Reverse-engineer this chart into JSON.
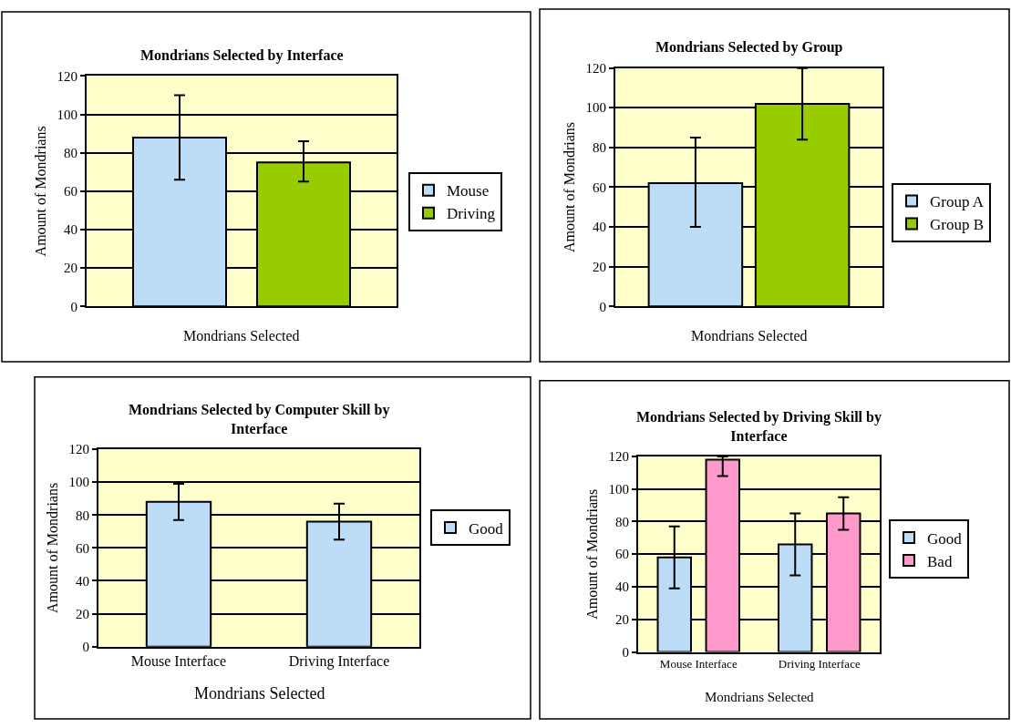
{
  "chart_data": [
    {
      "type": "bar",
      "title": "Mondrians Selected by Interface",
      "xlabel": "Mondrians Selected",
      "ylabel": "Amount of Mondrians",
      "categories": [
        null
      ],
      "ylim": [
        0,
        120
      ],
      "yticks": [
        0,
        20,
        40,
        60,
        80,
        100,
        120
      ],
      "grid": "y",
      "legend": "right",
      "series": [
        {
          "name": "Mouse",
          "color": "#bcdcf7",
          "values": [
            88
          ],
          "errors": [
            [
              66,
              110
            ]
          ]
        },
        {
          "name": "Driving",
          "color": "#99cc00",
          "values": [
            75
          ],
          "errors": [
            [
              65,
              86
            ]
          ]
        }
      ]
    },
    {
      "type": "bar",
      "title": "Mondrians Selected by Group",
      "xlabel": "Mondrians Selected",
      "ylabel": "Amount of Mondrians",
      "categories": [
        null
      ],
      "ylim": [
        0,
        120
      ],
      "yticks": [
        0,
        20,
        40,
        60,
        80,
        100,
        120
      ],
      "grid": "y",
      "legend": "right",
      "series": [
        {
          "name": "Group A",
          "color": "#bcdcf7",
          "values": [
            62
          ],
          "errors": [
            [
              40,
              85
            ]
          ]
        },
        {
          "name": "Group B",
          "color": "#99cc00",
          "values": [
            102
          ],
          "errors": [
            [
              84,
              120
            ]
          ]
        }
      ]
    },
    {
      "type": "bar",
      "title": "Mondrians Selected by Computer Skill by Interface",
      "xlabel": "Mondrians Selected",
      "ylabel": "Amount of Mondrians",
      "categories": [
        "Mouse Interface",
        "Driving Interface"
      ],
      "ylim": [
        0,
        120
      ],
      "yticks": [
        0,
        20,
        40,
        60,
        80,
        100,
        120
      ],
      "grid": "y",
      "legend": "right",
      "series": [
        {
          "name": "Good",
          "color": "#bcdcf7",
          "values": [
            88,
            76
          ],
          "errors": [
            [
              77,
              99
            ],
            [
              65,
              87
            ]
          ]
        }
      ]
    },
    {
      "type": "bar",
      "title": "Mondrians Selected by Driving Skill by Interface",
      "xlabel": "Mondrians Selected",
      "ylabel": "Amount of Mondrians",
      "categories": [
        "Mouse Interface",
        "Driving Interface"
      ],
      "ylim": [
        0,
        120
      ],
      "yticks": [
        0,
        20,
        40,
        60,
        80,
        100,
        120
      ],
      "grid": "y",
      "legend": "right",
      "series": [
        {
          "name": "Good",
          "color": "#bcdcf7",
          "values": [
            58,
            66
          ],
          "errors": [
            [
              39,
              77
            ],
            [
              47,
              85
            ]
          ]
        },
        {
          "name": "Bad",
          "color": "#ff99cc",
          "values": [
            118,
            85
          ],
          "errors": [
            [
              108,
              120
            ],
            [
              75,
              95
            ]
          ]
        }
      ]
    }
  ]
}
